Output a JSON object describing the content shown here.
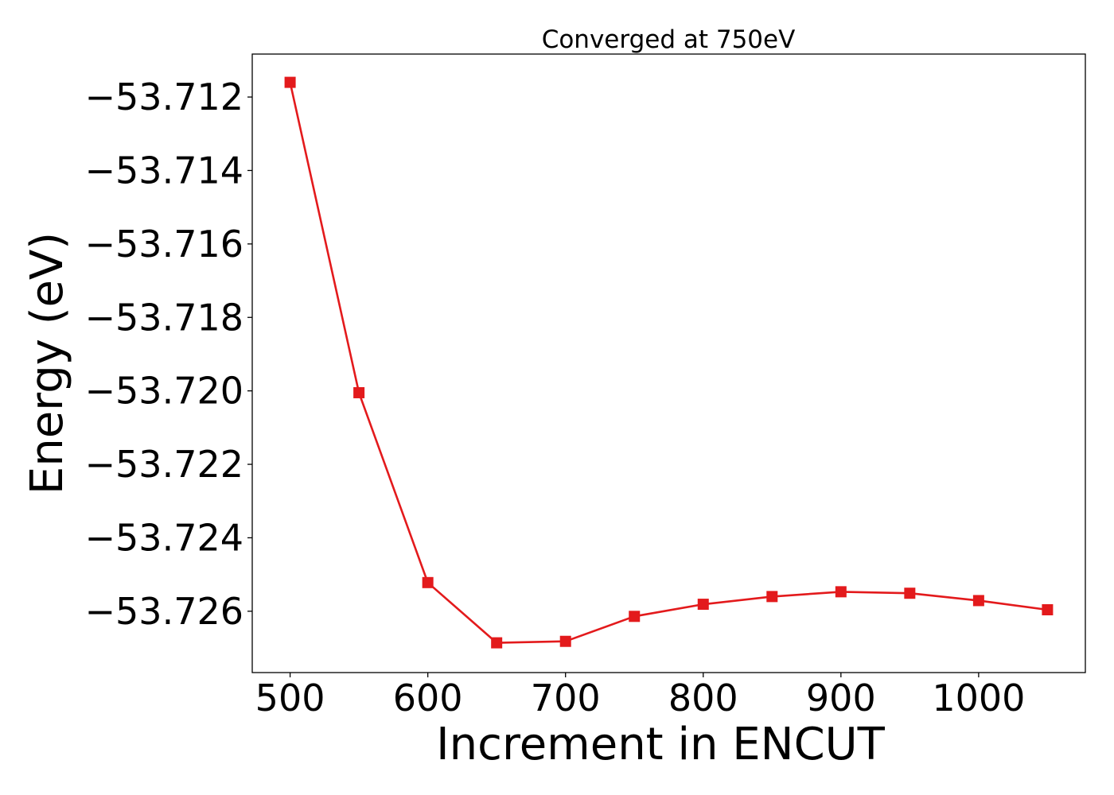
{
  "chart_data": {
    "type": "line",
    "title": "Converged at 750eV",
    "xlabel": "Increment in ENCUT",
    "ylabel": "Energy (eV)",
    "x": [
      500,
      550,
      600,
      650,
      700,
      750,
      800,
      850,
      900,
      950,
      1000,
      1050
    ],
    "series": [
      {
        "values": [
          -53.7116,
          -53.72005,
          -53.72522,
          -53.72686,
          -53.72682,
          -53.72614,
          -53.72581,
          -53.7256,
          -53.72547,
          -53.72551,
          -53.72571,
          -53.72596
        ],
        "color": "#e31a1c",
        "marker": "square"
      }
    ],
    "xlim": [
      472.5,
      1077.5
    ],
    "ylim": [
      -53.72767,
      -53.71083
    ],
    "xticks": [
      500,
      600,
      700,
      800,
      900,
      1000
    ],
    "xtick_labels": [
      "500",
      "600",
      "700",
      "800",
      "900",
      "1000"
    ],
    "yticks": [
      -53.712,
      -53.714,
      -53.716,
      -53.718,
      -53.72,
      -53.722,
      -53.724,
      -53.726
    ],
    "ytick_labels": [
      "−53.712",
      "−53.714",
      "−53.716",
      "−53.718",
      "−53.720",
      "−53.722",
      "−53.724",
      "−53.726"
    ],
    "grid": false,
    "legend": false
  }
}
